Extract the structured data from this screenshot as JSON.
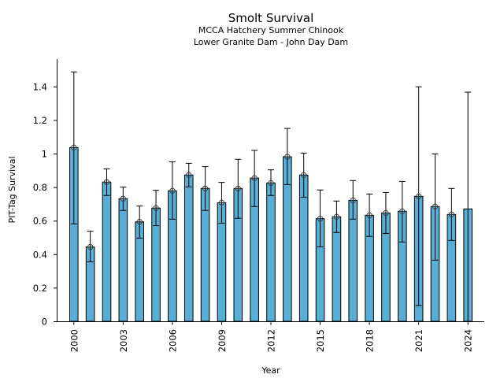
{
  "chart_data": {
    "type": "bar",
    "title": "Smolt Survival",
    "subtitle_lines": [
      "MCCA Hatchery Summer Chinook",
      "Lower Granite Dam - John Day Dam"
    ],
    "xlabel": "Year",
    "ylabel": "PIT-Tag Survival",
    "ylim": [
      0,
      1.55
    ],
    "xlim": [
      1999.0,
      2025.0
    ],
    "yticks": [
      0,
      0.2,
      0.4,
      0.6,
      0.8,
      1.0,
      1.2,
      1.4
    ],
    "ytick_labels": [
      "0",
      "0.2",
      "0.4",
      "0.6",
      "0.8",
      "1",
      "1.2",
      "1.4"
    ],
    "xticks": [
      2000,
      2003,
      2006,
      2009,
      2012,
      2015,
      2018,
      2021,
      2024
    ],
    "xtick_labels": [
      "2000",
      "2003",
      "2006",
      "2009",
      "2012",
      "2015",
      "2018",
      "2021",
      "2024"
    ],
    "grid": false,
    "legend": "none",
    "bar_color": "#5aaed6",
    "edge_color": "#000000",
    "categories": [
      2000,
      2001,
      2002,
      2003,
      2004,
      2005,
      2006,
      2007,
      2008,
      2009,
      2010,
      2011,
      2012,
      2013,
      2014,
      2015,
      2016,
      2017,
      2018,
      2019,
      2020,
      2021,
      2022,
      2023,
      2024
    ],
    "series": [
      {
        "name": "PIT-Tag Survival",
        "values": [
          1.036,
          0.443,
          0.83,
          0.731,
          0.593,
          0.675,
          0.778,
          0.872,
          0.792,
          0.707,
          0.792,
          0.854,
          0.825,
          0.981,
          0.872,
          0.612,
          0.623,
          0.721,
          0.632,
          0.646,
          0.656,
          0.745,
          0.684,
          0.637,
          0.67
        ],
        "upper": [
          1.487,
          0.537,
          0.909,
          0.8,
          0.687,
          0.781,
          0.951,
          0.942,
          0.922,
          0.828,
          0.966,
          1.019,
          0.903,
          1.15,
          1.003,
          0.783,
          0.717,
          0.839,
          0.759,
          0.768,
          0.834,
          1.398,
          0.998,
          0.792,
          1.366
        ],
        "lower": [
          0.581,
          0.355,
          0.75,
          0.661,
          0.496,
          0.57,
          0.609,
          0.801,
          0.661,
          0.585,
          0.614,
          0.684,
          0.75,
          0.815,
          0.74,
          0.444,
          0.529,
          0.609,
          0.506,
          0.524,
          0.473,
          0.094,
          0.365,
          0.482,
          0.0
        ],
        "markers": [
          true,
          true,
          true,
          true,
          true,
          true,
          true,
          true,
          true,
          true,
          true,
          true,
          true,
          true,
          true,
          true,
          true,
          true,
          true,
          true,
          true,
          true,
          true,
          true,
          false
        ]
      }
    ]
  }
}
